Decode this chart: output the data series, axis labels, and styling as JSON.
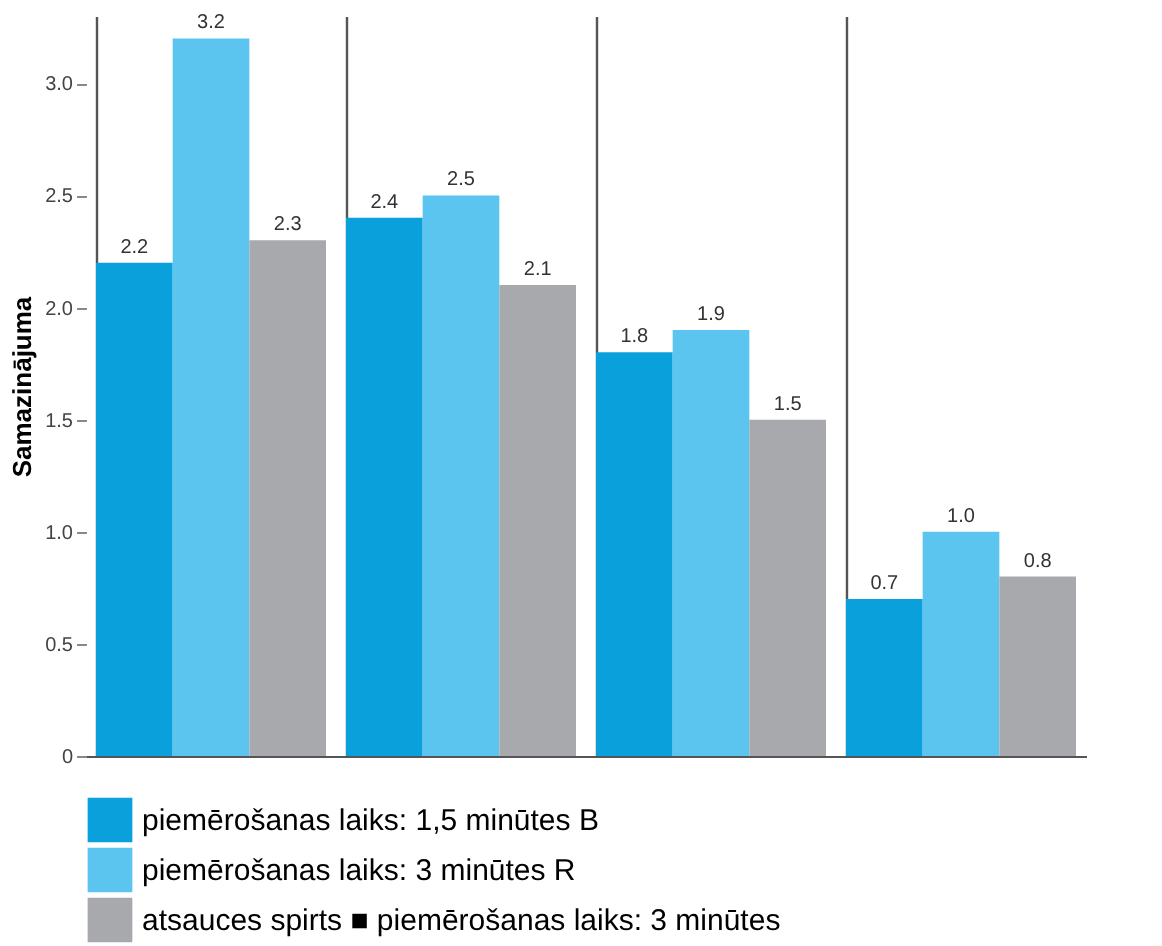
{
  "chart_data": {
    "type": "bar",
    "ylabel": "Samazinājuma",
    "categories": [
      null,
      null,
      null,
      null
    ],
    "series": [
      {
        "name": "piemērošanas laiks: 1,5 minūtes B",
        "color": "#0aa0dc",
        "values": [
          2.2,
          2.4,
          1.8,
          0.7
        ],
        "value_labels": [
          "2.2",
          "2.4",
          "1.8",
          "0.7"
        ]
      },
      {
        "name": "piemērošanas laiks: 3 minūtes R",
        "color": "#5bc5ef",
        "values": [
          3.2,
          2.5,
          1.9,
          1.0
        ],
        "value_labels": [
          "3.2",
          "2.5",
          "1.9",
          "1.0"
        ]
      },
      {
        "name": "atsauces spirts ■ piemērošanas laiks: 3 minūtes",
        "color": "#a7a9ac",
        "values": [
          2.3,
          2.1,
          1.5,
          0.8
        ],
        "value_labels": [
          "2.3",
          "2.1",
          "1.5",
          "0.8"
        ]
      }
    ],
    "ylim": [
      0,
      3.3
    ],
    "yticks": [
      0,
      {
        "value": 0.5,
        "label": "0.5"
      },
      {
        "value": 1,
        "label": "1.0"
      },
      {
        "value": 1.5,
        "label": "1.5"
      },
      {
        "value": 2,
        "label": "2.0"
      },
      {
        "value": 2.5,
        "label": "2.5"
      },
      {
        "value": 3,
        "label": "3.0"
      }
    ],
    "grid": "x",
    "legend": "bottom"
  }
}
